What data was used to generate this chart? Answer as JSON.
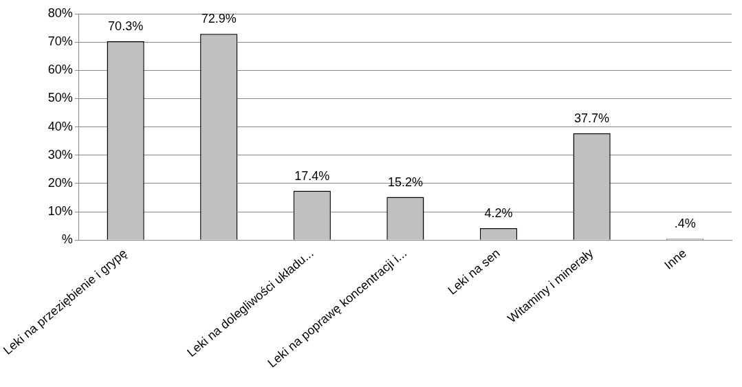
{
  "chart_data": {
    "type": "bar",
    "categories": [
      "Leki na przeziębienie i grypę",
      null,
      "Leki na dolegliwości układu...",
      "Leki na poprawę koncentracji i...",
      "Leki na sen",
      "Witaminy i minerały",
      "Inne"
    ],
    "values": [
      70.3,
      72.9,
      17.4,
      15.2,
      4.2,
      37.7,
      0.4
    ],
    "value_labels": [
      "70.3%",
      "72.9%",
      "17.4%",
      "15.2%",
      "4.2%",
      "37.7%",
      ".4%"
    ],
    "color": "#c0c0c0",
    "ylim": [
      0,
      80
    ],
    "yticks": [
      {
        "value": 0,
        "label": "%"
      },
      {
        "value": 10,
        "label": "10%"
      },
      {
        "value": 20,
        "label": "20%"
      },
      {
        "value": 30,
        "label": "30%"
      },
      {
        "value": 40,
        "label": "40%"
      },
      {
        "value": 50,
        "label": "50%"
      },
      {
        "value": 60,
        "label": "60%"
      },
      {
        "value": 70,
        "label": "70%"
      },
      {
        "value": 80,
        "label": "80%"
      }
    ],
    "grid": "y",
    "legend": false
  }
}
